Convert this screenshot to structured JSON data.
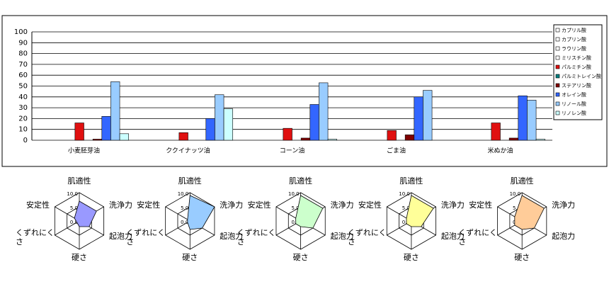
{
  "chart_data": [
    {
      "type": "bar",
      "categories": [
        "小麦胚芽油",
        "ククイナッツ油",
        "コーン油",
        "ごま油",
        "米ぬか油"
      ],
      "series": [
        {
          "name": "カプリル酸",
          "color": "#ffffff",
          "values": [
            0,
            0,
            0,
            0,
            0
          ]
        },
        {
          "name": "カプリン酸",
          "color": "#ffffff",
          "values": [
            0,
            0,
            0,
            0,
            0
          ]
        },
        {
          "name": "ラウリン酸",
          "color": "#ffffff",
          "values": [
            0,
            0,
            0,
            0,
            0
          ]
        },
        {
          "name": "ミリスチン酸",
          "color": "#ffffff",
          "values": [
            0,
            0,
            0,
            0,
            0
          ]
        },
        {
          "name": "パルミチン酸",
          "color": "#e01010",
          "values": [
            16,
            7,
            11,
            9,
            16
          ]
        },
        {
          "name": "パルミトレイン酸",
          "color": "#008080",
          "values": [
            0,
            0,
            0,
            0,
            0
          ]
        },
        {
          "name": "ステアリン酸",
          "color": "#800000",
          "values": [
            1,
            0,
            2,
            5,
            2
          ]
        },
        {
          "name": "オレイン酸",
          "color": "#3366ff",
          "values": [
            22,
            20,
            33,
            40,
            41
          ]
        },
        {
          "name": "リノール酸",
          "color": "#99ccff",
          "values": [
            54,
            42,
            53,
            46,
            37
          ]
        },
        {
          "name": "リノレン酸",
          "color": "#ccffff",
          "values": [
            6,
            29,
            1,
            0,
            1
          ]
        }
      ],
      "ylim": [
        0,
        100
      ],
      "yticks": [
        0,
        10,
        20,
        30,
        40,
        50,
        60,
        70,
        80,
        90,
        100
      ],
      "grid": true,
      "legend": "right"
    },
    {
      "type": "radar",
      "color": "#9999ff",
      "categories": [
        "肌適性",
        "洗浄力",
        "起泡力",
        "硬さ",
        "くずれにくさ",
        "安定性"
      ],
      "values": [
        7,
        7,
        4,
        2,
        1,
        2
      ],
      "rlim": [
        0,
        10
      ],
      "rticks": [
        {
          "value": 0,
          "label": "0.0"
        },
        {
          "value": 5,
          "label": "5.0"
        },
        {
          "value": 10,
          "label": "10.0"
        }
      ]
    },
    {
      "type": "radar",
      "color": "#99ccff",
      "categories": [
        "肌適性",
        "洗浄力",
        "起泡力",
        "硬さ",
        "くずれにくさ",
        "安定性"
      ],
      "values": [
        9,
        10,
        5,
        3,
        1,
        1
      ],
      "rlim": [
        0,
        10
      ],
      "rticks": [
        {
          "value": 0,
          "label": "0.0"
        },
        {
          "value": 5,
          "label": "5.0"
        },
        {
          "value": 10,
          "label": "10.0"
        }
      ]
    },
    {
      "type": "radar",
      "color": "#ccffcc",
      "categories": [
        "肌適性",
        "洗浄力",
        "起泡力",
        "硬さ",
        "くずれにくさ",
        "安定性"
      ],
      "values": [
        9,
        9,
        5,
        2,
        2,
        2
      ],
      "rlim": [
        0,
        10
      ],
      "rticks": [
        {
          "value": 0,
          "label": "0.0"
        },
        {
          "value": 5,
          "label": "5.0"
        },
        {
          "value": 10,
          "label": "10.0"
        }
      ]
    },
    {
      "type": "radar",
      "color": "#ffff99",
      "categories": [
        "肌適性",
        "洗浄力",
        "起泡力",
        "硬さ",
        "くずれにくさ",
        "安定性"
      ],
      "values": [
        9,
        9,
        4,
        2,
        2,
        2
      ],
      "rlim": [
        0,
        10
      ],
      "rticks": [
        {
          "value": 0,
          "label": "0.0"
        },
        {
          "value": 5,
          "label": "5.0"
        },
        {
          "value": 10,
          "label": "10.0"
        }
      ]
    },
    {
      "type": "radar",
      "color": "#ffcc99",
      "categories": [
        "肌適性",
        "洗浄力",
        "起泡力",
        "硬さ",
        "くずれにくさ",
        "安定性"
      ],
      "values": [
        9,
        9,
        5,
        3,
        3,
        3
      ],
      "rlim": [
        0,
        10
      ],
      "rticks": [
        {
          "value": 0,
          "label": "0.0"
        },
        {
          "value": 5,
          "label": "5.0"
        },
        {
          "value": 10,
          "label": "10.0"
        }
      ]
    }
  ]
}
